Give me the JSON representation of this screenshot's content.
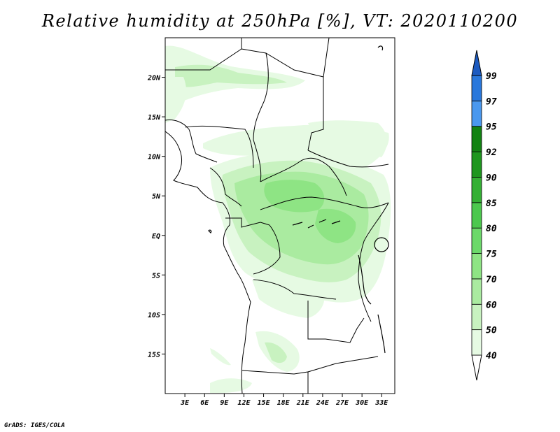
{
  "title": "Relative humidity at 250hPa [%], VT: 2020110200",
  "footer": "GrADS: IGES/COLA",
  "map": {
    "lon_range": [
      0,
      35
    ],
    "lat_range": [
      -20,
      25
    ],
    "lat_ticks": [
      {
        "v": 20,
        "label": "20N"
      },
      {
        "v": 15,
        "label": "15N"
      },
      {
        "v": 10,
        "label": "10N"
      },
      {
        "v": 5,
        "label": "5N"
      },
      {
        "v": 0,
        "label": "EQ"
      },
      {
        "v": -5,
        "label": "5S"
      },
      {
        "v": -10,
        "label": "10S"
      },
      {
        "v": -15,
        "label": "15S"
      }
    ],
    "lon_ticks": [
      {
        "v": 3,
        "label": "3E"
      },
      {
        "v": 6,
        "label": "6E"
      },
      {
        "v": 9,
        "label": "9E"
      },
      {
        "v": 12,
        "label": "12E"
      },
      {
        "v": 15,
        "label": "15E"
      },
      {
        "v": 18,
        "label": "18E"
      },
      {
        "v": 21,
        "label": "21E"
      },
      {
        "v": 24,
        "label": "24E"
      },
      {
        "v": 27,
        "label": "27E"
      },
      {
        "v": 30,
        "label": "30E"
      },
      {
        "v": 33,
        "label": "33E"
      }
    ]
  },
  "colorbar": {
    "levels": [
      {
        "label": "40",
        "color": "#ffffff"
      },
      {
        "label": "50",
        "color": "#e6fae3"
      },
      {
        "label": "60",
        "color": "#c8f2c0"
      },
      {
        "label": "70",
        "color": "#aaeba0"
      },
      {
        "label": "75",
        "color": "#8ee484"
      },
      {
        "label": "80",
        "color": "#6cd96a"
      },
      {
        "label": "85",
        "color": "#4cc84e"
      },
      {
        "label": "90",
        "color": "#34b034"
      },
      {
        "label": "92",
        "color": "#1e961e"
      },
      {
        "label": "95",
        "color": "#128212"
      },
      {
        "label": "97",
        "color": "#4a98ee"
      },
      {
        "label": "99",
        "color": "#2a78dc"
      }
    ],
    "top_color": "#1c5ac0"
  }
}
